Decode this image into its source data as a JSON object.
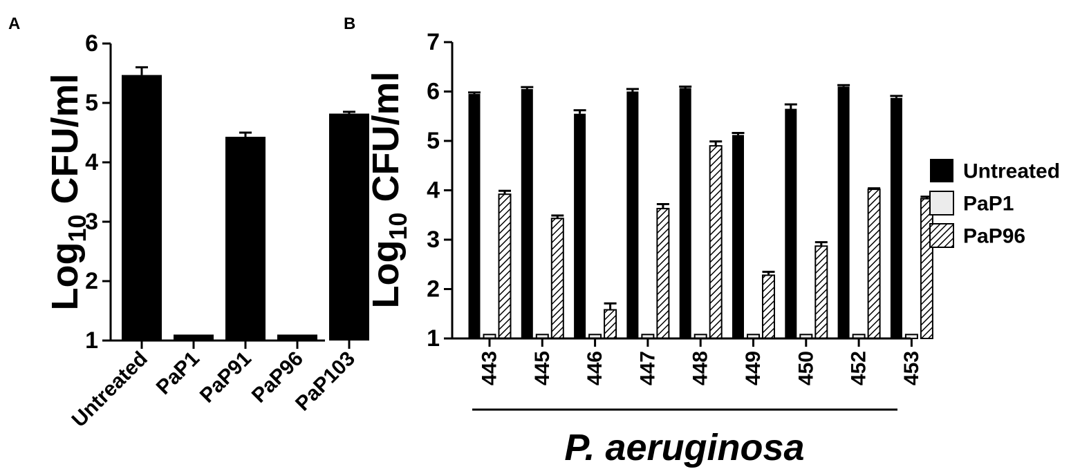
{
  "chart_data": [
    {
      "panel": "A",
      "type": "bar",
      "title": "",
      "xlabel": "",
      "ylabel": {
        "prefix": "Log",
        "subscript": "10",
        "suffix": " CFU/ml"
      },
      "ylim": [
        1,
        6
      ],
      "yticks": [
        "1",
        "2",
        "3",
        "4",
        "5",
        "6"
      ],
      "categories": [
        "Untreated",
        "PaP1",
        "PaP91",
        "PaP96",
        "PaP103"
      ],
      "values": [
        5.47,
        1.1,
        4.43,
        1.1,
        4.82
      ],
      "errors": [
        0.13,
        0,
        0.07,
        0,
        0.03
      ],
      "grid": false,
      "color": "#000000"
    },
    {
      "panel": "B",
      "type": "bar",
      "title": "",
      "xlabel": "P. aeruginosa",
      "ylabel": {
        "prefix": "Log",
        "subscript": "10",
        "suffix": " CFU/ml"
      },
      "ylim": [
        1,
        7
      ],
      "yticks": [
        "1",
        "2",
        "3",
        "4",
        "5",
        "6",
        "7"
      ],
      "categories": [
        "443",
        "445",
        "446",
        "447",
        "448",
        "449",
        "450",
        "452",
        "453"
      ],
      "series": [
        {
          "name": "Untreated",
          "fill": "#000000",
          "values": [
            5.95,
            6.05,
            5.55,
            6.0,
            6.07,
            5.12,
            5.65,
            6.1,
            5.87
          ],
          "errors": [
            0.03,
            0.04,
            0.07,
            0.05,
            0.03,
            0.04,
            0.09,
            0.03,
            0.04
          ]
        },
        {
          "name": "PaP1",
          "fill": "#ececec",
          "values": [
            1.08,
            1.08,
            1.08,
            1.08,
            1.08,
            1.08,
            1.08,
            1.08,
            1.08
          ],
          "errors": [
            0,
            0,
            0,
            0,
            0,
            0,
            0,
            0,
            0
          ]
        },
        {
          "name": "PaP96",
          "fill": "hatch",
          "values": [
            3.92,
            3.43,
            1.58,
            3.63,
            4.9,
            2.28,
            2.87,
            4.02,
            3.83
          ],
          "errors": [
            0.07,
            0.06,
            0.13,
            0.09,
            0.09,
            0.07,
            0.08,
            0.02,
            0.04
          ]
        }
      ],
      "legend": "right",
      "grid": false
    }
  ]
}
